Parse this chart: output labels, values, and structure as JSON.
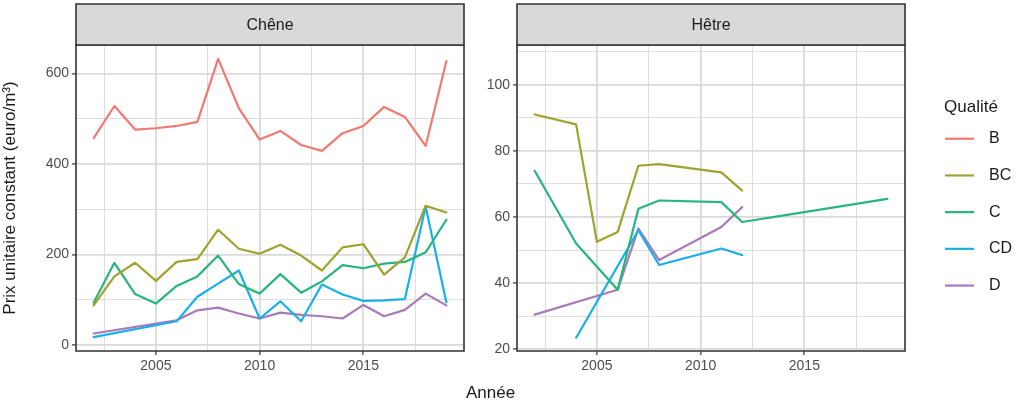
{
  "chart_data": [
    {
      "type": "line",
      "title": "Chêne",
      "ylabel": "Prix unitaire constant (euro/m³)",
      "xlabel": "Année",
      "xlim": [
        2001.15,
        2019.85
      ],
      "xticks": [
        {
          "value": 2002.5,
          "label": null
        },
        2005,
        {
          "value": 2007.5,
          "label": null
        },
        2010,
        {
          "value": 2012.5,
          "label": null
        },
        2015,
        {
          "value": 2017.5,
          "label": null
        }
      ],
      "ylim": [
        -12.7,
        662.7
      ],
      "yticks": [
        0,
        {
          "value": 100,
          "label": null
        },
        200,
        {
          "value": 300,
          "label": null
        },
        400,
        {
          "value": 500,
          "label": null
        },
        600
      ],
      "grid": true,
      "marker": "none",
      "legend": "right",
      "legend_title": "Qualité",
      "series": [
        {
          "name": "B",
          "color": "#f07a72",
          "x": [
            2002,
            2003,
            2004,
            2005,
            2006,
            2007,
            2008,
            2009,
            2010,
            2011,
            2012,
            2013,
            2014,
            2015,
            2016,
            2017,
            2018,
            2019
          ],
          "values": [
            457,
            528,
            476,
            479,
            484,
            493,
            632,
            523,
            454,
            473,
            442,
            429,
            468,
            484,
            526,
            504,
            440,
            627
          ]
        },
        {
          "name": "BC",
          "color": "#a0a22e",
          "x": [
            2002,
            2003,
            2004,
            2005,
            2006,
            2007,
            2008,
            2009,
            2010,
            2011,
            2012,
            2013,
            2014,
            2015,
            2016,
            2017,
            2018,
            2019
          ],
          "values": [
            88,
            152,
            182,
            142,
            184,
            190,
            255,
            213,
            202,
            222,
            198,
            165,
            216,
            223,
            156,
            194,
            308,
            293
          ]
        },
        {
          "name": "C",
          "color": "#27b47e",
          "x": [
            2002,
            2003,
            2004,
            2005,
            2006,
            2007,
            2008,
            2009,
            2010,
            2011,
            2012,
            2013,
            2014,
            2015,
            2016,
            2017,
            2018,
            2019
          ],
          "values": [
            94,
            182,
            113,
            92,
            131,
            152,
            198,
            135,
            114,
            157,
            116,
            141,
            177,
            170,
            180,
            184,
            205,
            277
          ]
        },
        {
          "name": "CD",
          "color": "#1aafe8",
          "x": [
            2002,
            2006,
            2007,
            2008,
            2009,
            2010,
            2011,
            2012,
            2013,
            2014,
            2015,
            2016,
            2017,
            2018,
            2019
          ],
          "values": [
            18,
            53,
            107,
            136,
            165,
            59,
            97,
            53,
            134,
            112,
            98,
            99,
            102,
            306,
            95
          ]
        },
        {
          "name": "D",
          "color": "#a87ab8",
          "x": [
            2002,
            2006,
            2007,
            2008,
            2009,
            2010,
            2011,
            2012,
            2013,
            2014,
            2015,
            2016,
            2017,
            2018,
            2019
          ],
          "values": [
            26,
            55,
            77,
            83,
            70,
            59,
            72,
            67,
            64,
            59,
            89,
            64,
            78,
            114,
            88
          ]
        }
      ]
    },
    {
      "type": "line",
      "title": "Hêtre",
      "xlim": [
        2001.15,
        2019.85
      ],
      "xticks": [
        {
          "value": 2002.5,
          "label": null
        },
        2005,
        {
          "value": 2007.5,
          "label": null
        },
        2010,
        {
          "value": 2012.5,
          "label": null
        },
        2015,
        {
          "value": 2017.5,
          "label": null
        }
      ],
      "ylim": [
        19.5,
        112
      ],
      "yticks": [
        20,
        {
          "value": 30,
          "label": null
        },
        40,
        {
          "value": 50,
          "label": null
        },
        60,
        {
          "value": 70,
          "label": null
        },
        80,
        {
          "value": 90,
          "label": null
        },
        100,
        {
          "value": 110,
          "label": null
        }
      ],
      "grid": true,
      "marker": "none",
      "series": [
        {
          "color": "#a0a22e",
          "x": [
            2002,
            2004,
            2005,
            2006,
            2007,
            2008,
            2011,
            2012
          ],
          "values": [
            91,
            88,
            52.5,
            55.5,
            75.5,
            76,
            73.5,
            68
          ]
        },
        {
          "color": "#27b47e",
          "x": [
            2002,
            2004,
            2006,
            2007,
            2008,
            2011,
            2012,
            2019
          ],
          "values": [
            74,
            52,
            38,
            62.5,
            65,
            64.5,
            58.5,
            65.5
          ]
        },
        {
          "color": "#1aafe8",
          "x": [
            2004,
            2007,
            2008,
            2011,
            2012
          ],
          "values": [
            23.5,
            56,
            45.5,
            50.5,
            48.5
          ]
        },
        {
          "color": "#a87ab8",
          "x": [
            2002,
            2006,
            2007,
            2008,
            2011,
            2012
          ],
          "values": [
            30.5,
            38,
            56.5,
            47,
            57,
            63
          ]
        }
      ]
    }
  ]
}
